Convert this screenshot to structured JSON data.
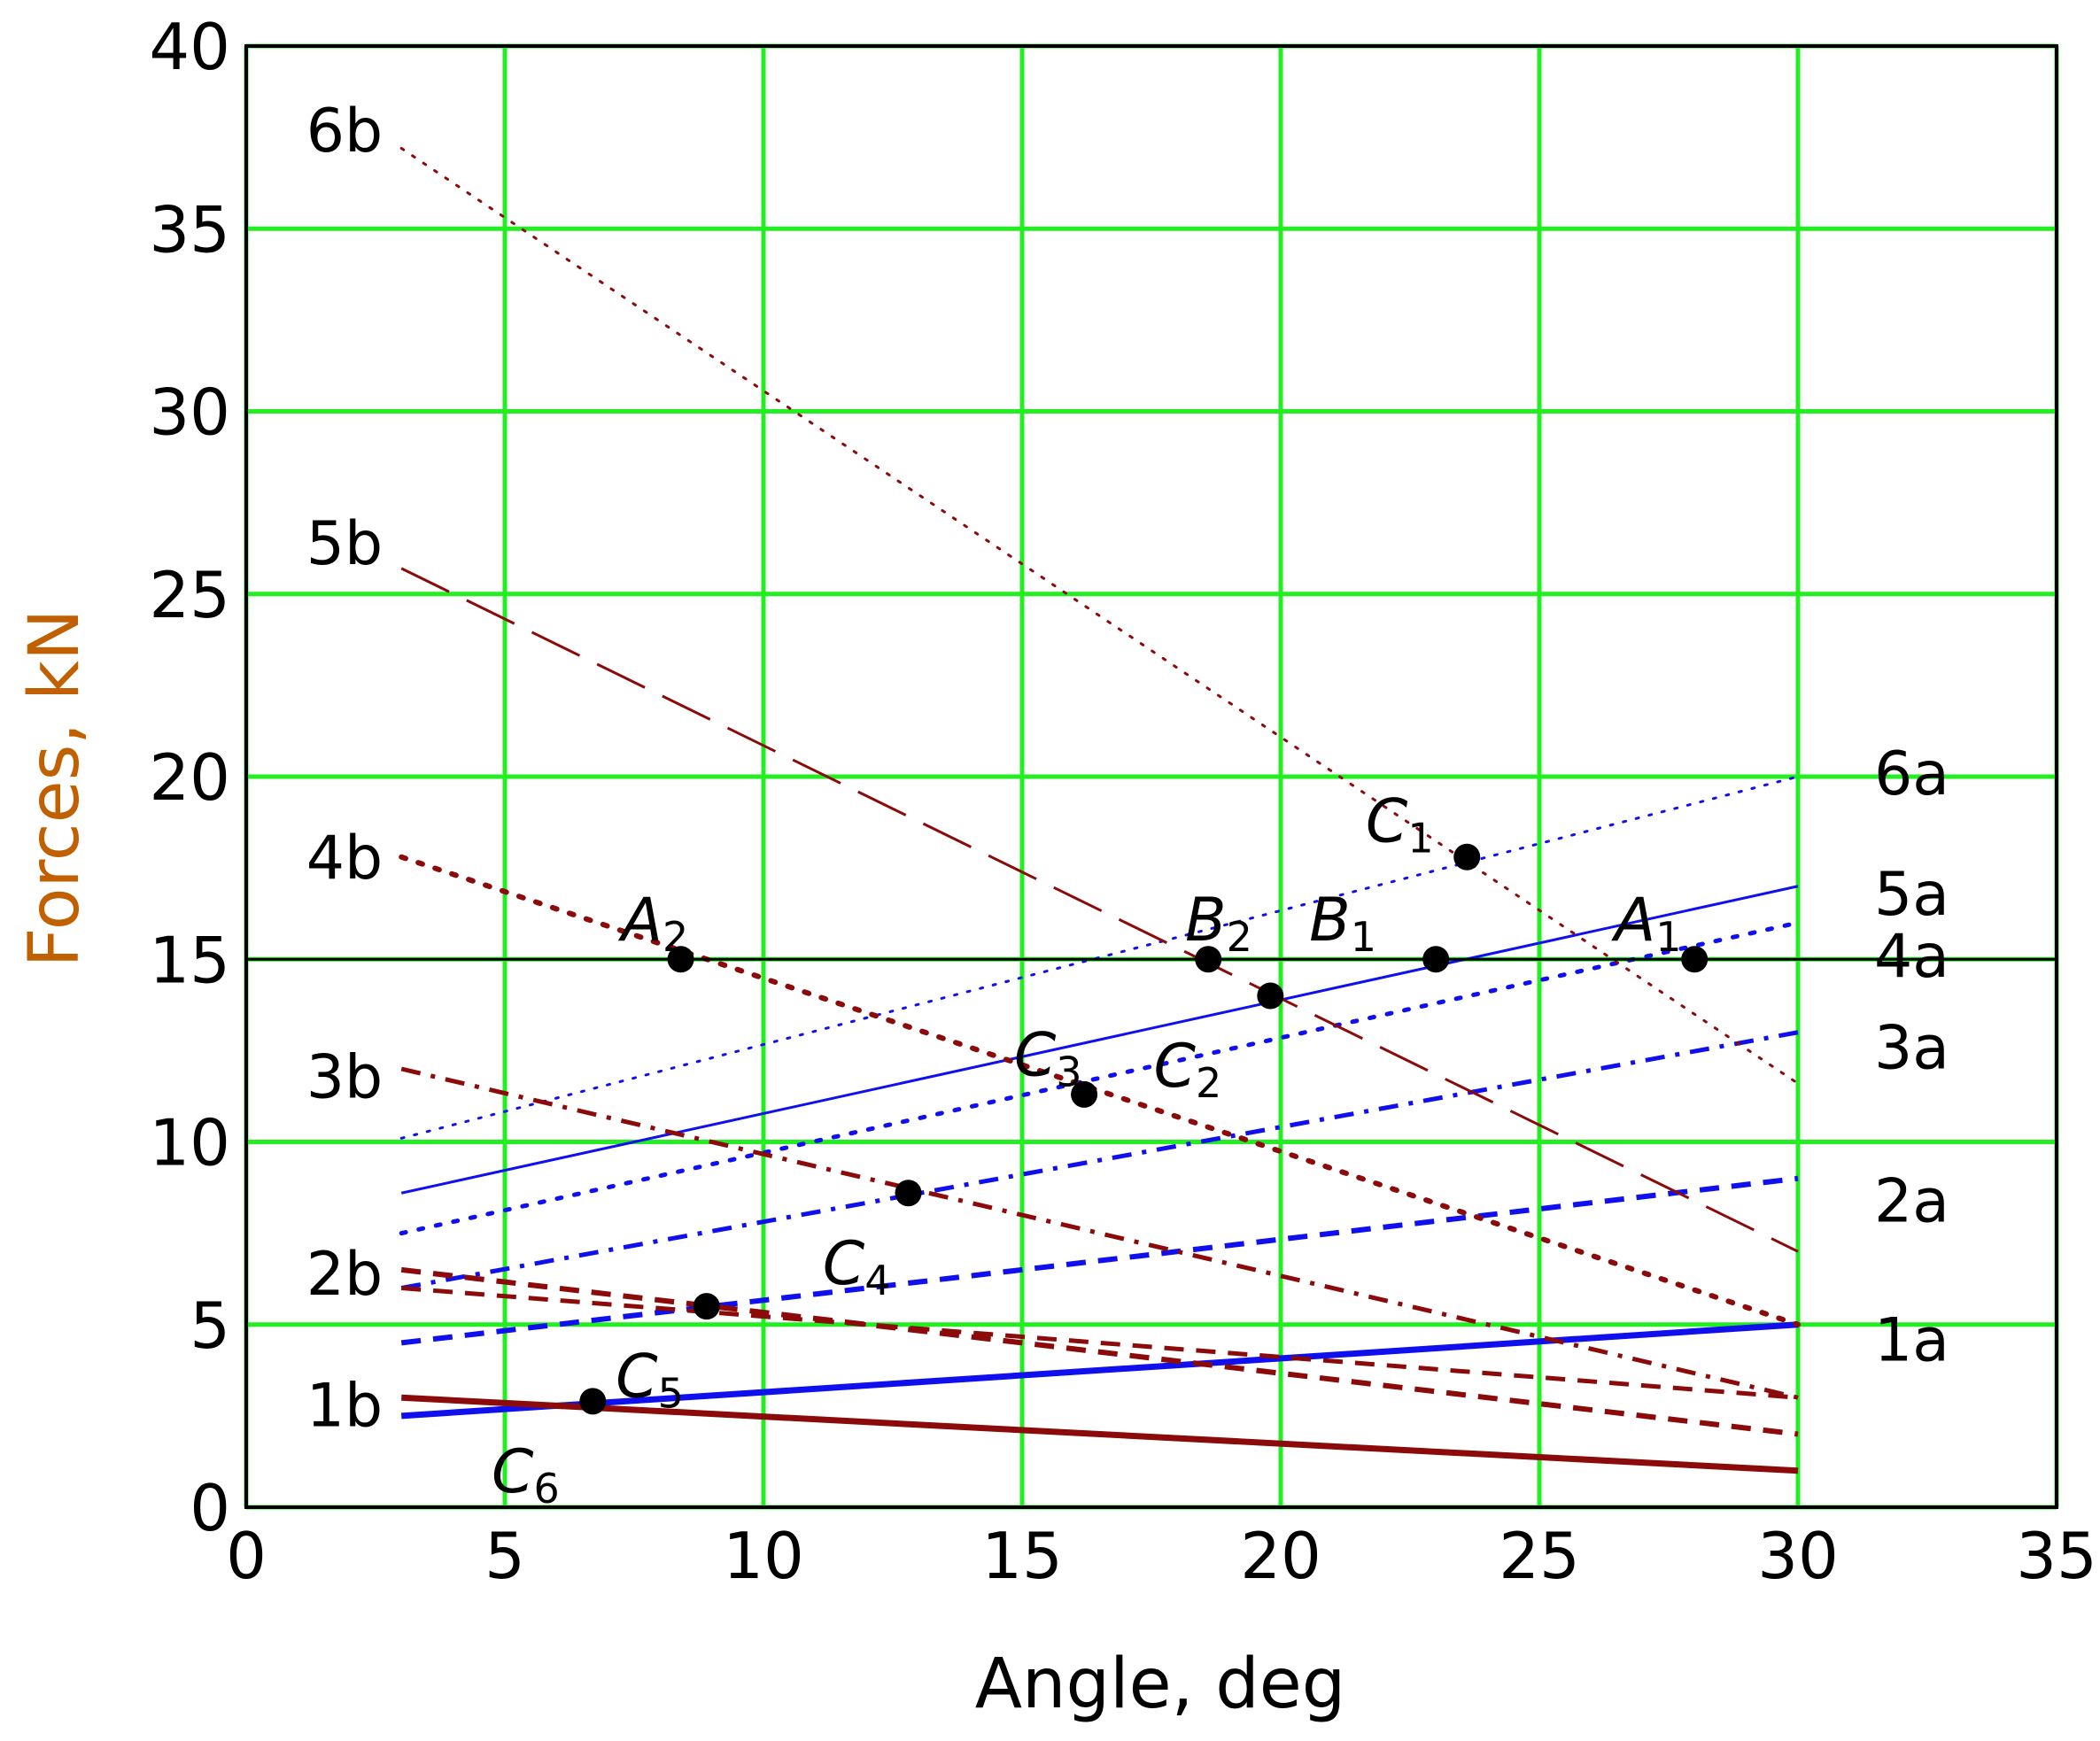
{
  "chart_data": {
    "type": "line",
    "title": "",
    "xlabel": "Angle, deg",
    "ylabel": "Forces, kN",
    "xlim": [
      0,
      35
    ],
    "ylim": [
      0,
      40
    ],
    "xticks": [
      0,
      5,
      10,
      15,
      20,
      25,
      30,
      35
    ],
    "yticks": [
      0,
      5,
      10,
      15,
      20,
      25,
      30,
      35,
      40
    ],
    "grid": true,
    "colors": {
      "grid": "#22ee22",
      "a_series": "#1010ee",
      "b_series": "#8b0a0a",
      "reference": "#000000",
      "axis_title": "#c06000"
    },
    "reference_line": {
      "y": 15
    },
    "series": [
      {
        "name": "1a",
        "x": [
          3,
          30
        ],
        "y": [
          2.5,
          5
        ],
        "color": "#1010ee",
        "style": "solid",
        "width": 7
      },
      {
        "name": "2a",
        "x": [
          3,
          30
        ],
        "y": [
          4.5,
          9
        ],
        "color": "#1010ee",
        "style": "dash",
        "width": 6
      },
      {
        "name": "3a",
        "x": [
          3,
          30
        ],
        "y": [
          6,
          13
        ],
        "color": "#1010ee",
        "style": "dashdot",
        "width": 5
      },
      {
        "name": "4a",
        "x": [
          3,
          30
        ],
        "y": [
          7.5,
          16
        ],
        "color": "#1010ee",
        "style": "dot",
        "width": 5
      },
      {
        "name": "5a",
        "x": [
          3,
          30
        ],
        "y": [
          8.6,
          17
        ],
        "color": "#1010ee",
        "style": "solid",
        "width": 3
      },
      {
        "name": "6a",
        "x": [
          3,
          30
        ],
        "y": [
          10.1,
          20
        ],
        "color": "#1010ee",
        "style": "finedot",
        "width": 3
      },
      {
        "name": "1b",
        "x": [
          3,
          30
        ],
        "y": [
          3,
          1
        ],
        "color": "#8b0a0a",
        "style": "solid",
        "width": 7
      },
      {
        "name": "2b",
        "x": [
          3,
          30
        ],
        "y": [
          6.5,
          2
        ],
        "color": "#8b0a0a",
        "style": "dash",
        "width": 6
      },
      {
        "name": "",
        "x": [
          3,
          30
        ],
        "y": [
          6,
          3
        ],
        "color": "#8b0a0a",
        "style": "dash",
        "width": 5
      },
      {
        "name": "3b",
        "x": [
          3,
          30
        ],
        "y": [
          12,
          3
        ],
        "color": "#8b0a0a",
        "style": "dashdot",
        "width": 5
      },
      {
        "name": "4b",
        "x": [
          3,
          30
        ],
        "y": [
          17.8,
          5
        ],
        "color": "#8b0a0a",
        "style": "dot",
        "width": 6
      },
      {
        "name": "5b",
        "x": [
          3,
          30
        ],
        "y": [
          25.7,
          7
        ],
        "color": "#8b0a0a",
        "style": "longdash",
        "width": 3
      },
      {
        "name": "6b",
        "x": [
          3,
          30
        ],
        "y": [
          37.2,
          11.6
        ],
        "color": "#8b0a0a",
        "style": "finedot",
        "width": 3
      }
    ],
    "series_label_positions": [
      {
        "name": "6a",
        "x": 32.2,
        "y": 20.1
      },
      {
        "name": "5a",
        "x": 32.2,
        "y": 16.8
      },
      {
        "name": "4a",
        "x": 32.2,
        "y": 15.1
      },
      {
        "name": "3a",
        "x": 32.2,
        "y": 12.6
      },
      {
        "name": "2a",
        "x": 32.2,
        "y": 8.4
      },
      {
        "name": "1a",
        "x": 32.2,
        "y": 4.6
      },
      {
        "name": "6b",
        "x": 1.9,
        "y": 37.7
      },
      {
        "name": "5b",
        "x": 1.9,
        "y": 26.4
      },
      {
        "name": "4b",
        "x": 1.9,
        "y": 17.8
      },
      {
        "name": "3b",
        "x": 1.9,
        "y": 11.8
      },
      {
        "name": "2b",
        "x": 1.9,
        "y": 6.4
      },
      {
        "name": "1b",
        "x": 1.9,
        "y": 2.8
      }
    ],
    "points": [
      {
        "label": "A",
        "sub": "1",
        "x": 28,
        "y": 15,
        "label_x": 27.1,
        "label_y": 16
      },
      {
        "label": "A",
        "sub": "2",
        "x": 8.4,
        "y": 15,
        "label_x": 7.9,
        "label_y": 16
      },
      {
        "label": "B",
        "sub": "1",
        "x": 23,
        "y": 15,
        "label_x": 21.2,
        "label_y": 16
      },
      {
        "label": "B",
        "sub": "2",
        "x": 18.6,
        "y": 15,
        "label_x": 18.8,
        "label_y": 16
      },
      {
        "label": "C",
        "sub": "1",
        "x": 23.6,
        "y": 17.8,
        "label_x": 22.3,
        "label_y": 18.7
      },
      {
        "label": "C",
        "sub": "2",
        "x": 19.8,
        "y": 14,
        "label_x": 18.2,
        "label_y": 12
      },
      {
        "label": "C",
        "sub": "3",
        "x": 16.2,
        "y": 11.3,
        "label_x": 15.5,
        "label_y": 12.3
      },
      {
        "label": "C",
        "sub": "4",
        "x": 12.8,
        "y": 8.6,
        "label_x": 11.8,
        "label_y": 6.6
      },
      {
        "label": "C",
        "sub": "5",
        "x": 8.9,
        "y": 5.5,
        "label_x": 7.8,
        "label_y": 3.5
      },
      {
        "label": "C",
        "sub": "6",
        "x": 6.7,
        "y": 2.9,
        "label_x": 5.4,
        "label_y": 0.9
      }
    ]
  }
}
